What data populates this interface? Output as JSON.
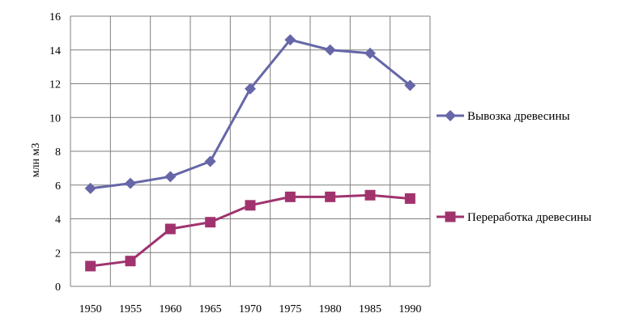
{
  "chart_data": {
    "type": "line",
    "title": "",
    "xlabel": "",
    "ylabel": "млн м3",
    "categories": [
      "1950",
      "1955",
      "1960",
      "1965",
      "1970",
      "1975",
      "1980",
      "1985",
      "1990"
    ],
    "ylim": [
      0,
      16
    ],
    "yticks": [
      "0",
      "2",
      "4",
      "6",
      "8",
      "10",
      "12",
      "14",
      "16"
    ],
    "grid": true,
    "legend_position": "right",
    "series": [
      {
        "name": "Вывозка древесины",
        "color": "#6666a8",
        "marker": "diamond",
        "values": [
          5.8,
          6.1,
          6.5,
          7.4,
          11.7,
          14.6,
          14.0,
          13.8,
          11.9
        ]
      },
      {
        "name": "Переработка древесины",
        "color": "#a0336e",
        "marker": "square",
        "values": [
          1.2,
          1.5,
          3.4,
          3.8,
          4.8,
          5.3,
          5.3,
          5.4,
          5.2
        ]
      }
    ]
  }
}
